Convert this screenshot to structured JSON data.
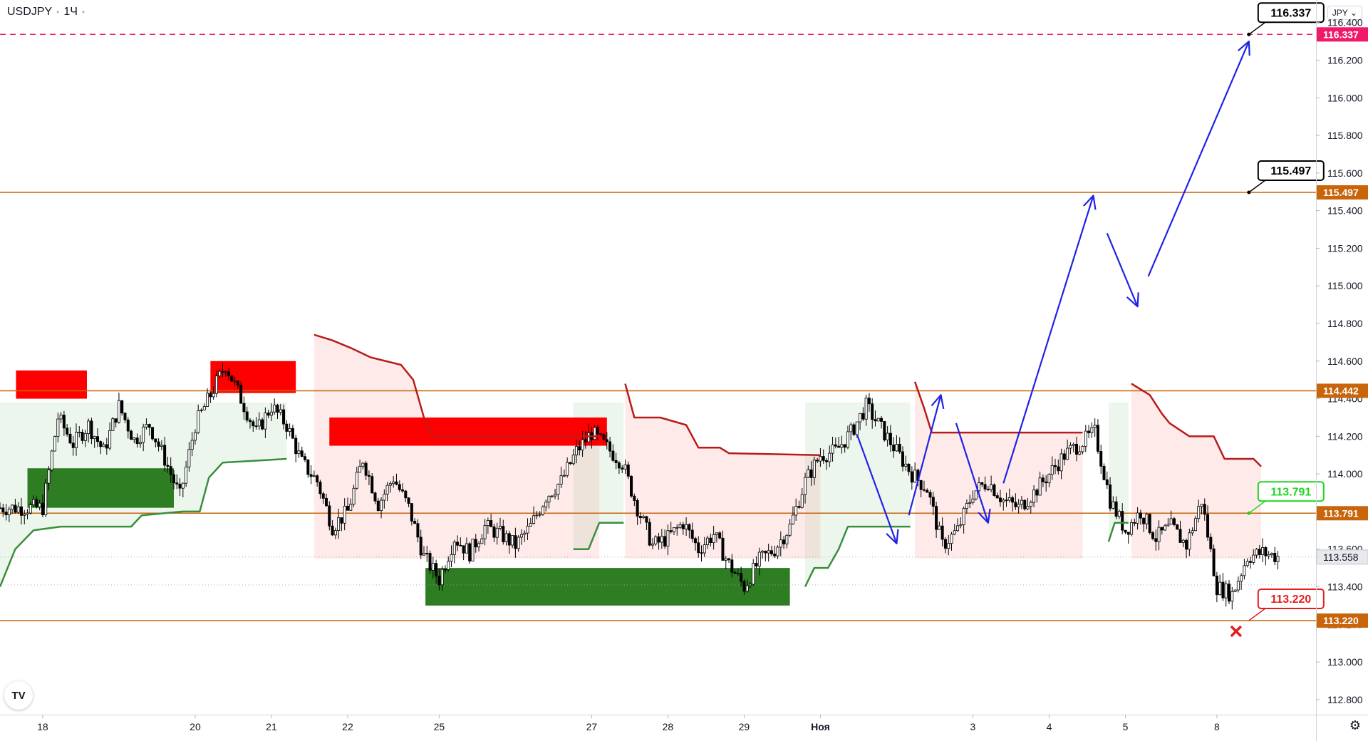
{
  "header": {
    "symbol": "USDJPY",
    "timeframe": "1Ч",
    "currency": "JPY"
  },
  "colors": {
    "level_line": "#c8640a",
    "target_dashed": "#f0196a",
    "bull_candle": "#26a69a",
    "candle": "#000000",
    "arrow": "#1f22e6",
    "supply_zone": "#ff0000",
    "demand_zone": "#2e7d23",
    "resistance_line": "#b71c1c",
    "support_line": "#388e3c",
    "green_label": "#1ed51e",
    "red_label": "#e41e1e"
  },
  "chart_data": {
    "type": "candlestick",
    "symbol": "USDJPY",
    "timeframe": "1Ч",
    "ylim": [
      112.72,
      116.52
    ],
    "y_ticks": [
      "112.800",
      "113.000",
      "113.200",
      "113.400",
      "113.600",
      "113.800",
      "114.000",
      "114.200",
      "114.400",
      "114.600",
      "114.800",
      "115.000",
      "115.200",
      "115.400",
      "115.600",
      "115.800",
      "116.000",
      "116.200",
      "116.400"
    ],
    "x_ticks": [
      "18",
      "20",
      "21",
      "22",
      "25",
      "27",
      "28",
      "29",
      "Ноя",
      "3",
      "4",
      "5",
      "8"
    ],
    "x_tick_index": [
      0,
      10,
      15,
      20,
      26,
      36,
      41,
      46,
      51,
      61,
      66,
      71,
      77
    ],
    "x_index_range": [
      -2.8,
      83.5
    ],
    "price_series": [
      [
        0,
        113.82
      ],
      [
        1,
        114.3
      ],
      [
        2,
        114.16
      ],
      [
        3,
        114.26
      ],
      [
        4,
        114.12
      ],
      [
        5,
        114.36
      ],
      [
        6,
        114.18
      ],
      [
        7,
        114.26
      ],
      [
        8,
        114.08
      ],
      [
        9,
        113.88
      ],
      [
        10,
        114.26
      ],
      [
        11,
        114.42
      ],
      [
        12,
        114.58
      ],
      [
        13,
        114.4
      ],
      [
        14,
        114.22
      ],
      [
        15,
        114.36
      ],
      [
        16,
        114.26
      ],
      [
        17,
        114.06
      ],
      [
        18,
        113.96
      ],
      [
        19,
        113.72
      ],
      [
        20,
        113.8
      ],
      [
        21,
        114.08
      ],
      [
        22,
        113.84
      ],
      [
        23,
        113.98
      ],
      [
        24,
        113.82
      ],
      [
        25,
        113.56
      ],
      [
        26,
        113.44
      ],
      [
        27,
        113.66
      ],
      [
        28,
        113.58
      ],
      [
        29,
        113.72
      ],
      [
        30,
        113.68
      ],
      [
        31,
        113.62
      ],
      [
        32,
        113.72
      ],
      [
        33,
        113.88
      ],
      [
        34,
        113.96
      ],
      [
        35,
        114.12
      ],
      [
        36,
        114.22
      ],
      [
        37,
        114.14
      ],
      [
        38,
        114.06
      ],
      [
        39,
        113.82
      ],
      [
        40,
        113.62
      ],
      [
        41,
        113.66
      ],
      [
        42,
        113.74
      ],
      [
        43,
        113.6
      ],
      [
        44,
        113.68
      ],
      [
        45,
        113.52
      ],
      [
        46,
        113.4
      ],
      [
        47,
        113.54
      ],
      [
        48,
        113.6
      ],
      [
        49,
        113.72
      ],
      [
        50,
        113.96
      ],
      [
        51,
        114.1
      ],
      [
        52,
        114.12
      ],
      [
        53,
        114.22
      ],
      [
        54,
        114.36
      ],
      [
        55,
        114.24
      ],
      [
        56,
        114.12
      ],
      [
        57,
        114.0
      ],
      [
        58,
        113.92
      ],
      [
        59,
        113.62
      ],
      [
        60,
        113.7
      ],
      [
        61,
        113.9
      ],
      [
        62,
        113.96
      ],
      [
        63,
        113.86
      ],
      [
        64,
        113.82
      ],
      [
        65,
        113.9
      ],
      [
        66,
        114.0
      ],
      [
        67,
        114.1
      ],
      [
        68,
        114.16
      ],
      [
        69,
        114.22
      ],
      [
        70,
        113.86
      ],
      [
        71,
        113.7
      ],
      [
        72,
        113.8
      ],
      [
        73,
        113.66
      ],
      [
        74,
        113.72
      ],
      [
        75,
        113.62
      ],
      [
        76,
        113.86
      ],
      [
        77,
        113.4
      ],
      [
        78,
        113.36
      ],
      [
        79,
        113.56
      ],
      [
        80,
        113.58
      ],
      [
        81,
        113.56
      ]
    ],
    "levels": [
      {
        "name": "level-116-337",
        "value": 116.337,
        "style": "dashed",
        "label": "116.337"
      },
      {
        "name": "level-115-497",
        "value": 115.497,
        "style": "solid",
        "label": "115.497"
      },
      {
        "name": "level-114-442",
        "value": 114.442,
        "style": "solid",
        "label": "114.442"
      },
      {
        "name": "level-113-791",
        "value": 113.791,
        "style": "solid",
        "label": "113.791"
      },
      {
        "name": "level-113-220",
        "value": 113.22,
        "style": "solid",
        "label": "113.220"
      }
    ],
    "last_price": {
      "value": 113.558,
      "label": "113.558"
    },
    "price_grid_lines": [
      113.558,
      113.41
    ],
    "callouts": [
      {
        "name": "target-2-callout",
        "label": "116.337",
        "value": 116.337,
        "x": 79.1,
        "color": "#000000",
        "marker": "dot"
      },
      {
        "name": "target-1-callout",
        "label": "115.497",
        "value": 115.497,
        "x": 79.1,
        "color": "#000000",
        "marker": "dot"
      },
      {
        "name": "entry-callout",
        "label": "113.791",
        "value": 113.791,
        "x": 79.1,
        "color": "#1ed51e",
        "marker": "dot"
      },
      {
        "name": "stop-callout",
        "label": "113.220",
        "value": 113.22,
        "x": 79.1,
        "color": "#e41e1e",
        "marker": "cross"
      }
    ],
    "supply_zones": [
      {
        "x1": -1.75,
        "x2": 2.9,
        "y1": 114.4,
        "y2": 114.55
      },
      {
        "x1": 11.0,
        "x2": 16.6,
        "y1": 114.43,
        "y2": 114.6
      },
      {
        "x1": 18.8,
        "x2": 37.0,
        "y1": 114.15,
        "y2": 114.3
      }
    ],
    "demand_zones": [
      {
        "x1": -1.0,
        "x2": 8.6,
        "y1": 113.82,
        "y2": 114.03
      },
      {
        "x1": 25.1,
        "x2": 49.0,
        "y1": 113.3,
        "y2": 113.5
      }
    ],
    "trend_stops": [
      {
        "kind": "resistance",
        "points": [
          [
            17.8,
            114.74
          ],
          [
            19.0,
            114.71
          ],
          [
            20.2,
            114.67
          ],
          [
            21.5,
            114.62
          ],
          [
            23.5,
            114.58
          ],
          [
            24.3,
            114.5
          ],
          [
            25.0,
            114.3
          ],
          [
            25.6,
            114.2
          ],
          [
            36.5,
            114.2
          ]
        ]
      },
      {
        "kind": "resistance",
        "points": [
          [
            38.2,
            114.48
          ],
          [
            38.8,
            114.3
          ],
          [
            40.5,
            114.3
          ],
          [
            42.2,
            114.26
          ],
          [
            43.0,
            114.14
          ],
          [
            44.4,
            114.14
          ],
          [
            45.0,
            114.11
          ],
          [
            51.0,
            114.1
          ]
        ]
      },
      {
        "kind": "resistance",
        "points": [
          [
            57.2,
            114.49
          ],
          [
            57.8,
            114.35
          ],
          [
            58.3,
            114.22
          ],
          [
            68.2,
            114.22
          ]
        ]
      },
      {
        "kind": "resistance",
        "points": [
          [
            71.4,
            114.48
          ],
          [
            72.6,
            114.42
          ],
          [
            73.4,
            114.32
          ],
          [
            73.9,
            114.27
          ],
          [
            75.2,
            114.2
          ],
          [
            76.8,
            114.2
          ],
          [
            77.5,
            114.08
          ],
          [
            79.4,
            114.08
          ],
          [
            79.9,
            114.04
          ]
        ]
      },
      {
        "kind": "support",
        "points": [
          [
            -2.8,
            113.4
          ],
          [
            -1.8,
            113.6
          ],
          [
            -0.6,
            113.7
          ],
          [
            1.2,
            113.72
          ],
          [
            5.8,
            113.72
          ],
          [
            6.5,
            113.78
          ],
          [
            9.2,
            113.8
          ],
          [
            10.3,
            113.8
          ],
          [
            10.9,
            113.98
          ],
          [
            11.8,
            114.06
          ],
          [
            16.0,
            114.08
          ]
        ]
      },
      {
        "kind": "support",
        "points": [
          [
            34.8,
            113.6
          ],
          [
            35.8,
            113.6
          ],
          [
            36.5,
            113.74
          ],
          [
            38.1,
            113.74
          ]
        ]
      },
      {
        "kind": "support",
        "points": [
          [
            50.0,
            113.4
          ],
          [
            50.6,
            113.5
          ],
          [
            51.5,
            113.5
          ],
          [
            52.2,
            113.6
          ],
          [
            52.8,
            113.72
          ],
          [
            56.9,
            113.72
          ]
        ]
      },
      {
        "kind": "support",
        "points": [
          [
            69.9,
            113.64
          ],
          [
            70.3,
            113.74
          ],
          [
            71.2,
            113.74
          ]
        ]
      }
    ],
    "forecast_arrows": [
      {
        "points": [
          [
            53.4,
            114.21
          ],
          [
            56.0,
            113.63
          ]
        ]
      },
      {
        "points": [
          [
            56.8,
            113.78
          ],
          [
            58.9,
            114.42
          ]
        ]
      },
      {
        "points": [
          [
            59.9,
            114.27
          ],
          [
            62.0,
            113.74
          ]
        ]
      },
      {
        "points": [
          [
            63.0,
            113.95
          ],
          [
            68.9,
            115.48
          ]
        ]
      },
      {
        "points": [
          [
            69.8,
            115.28
          ],
          [
            71.8,
            114.89
          ]
        ]
      },
      {
        "points": [
          [
            72.5,
            115.05
          ],
          [
            79.1,
            116.3
          ]
        ]
      }
    ]
  }
}
